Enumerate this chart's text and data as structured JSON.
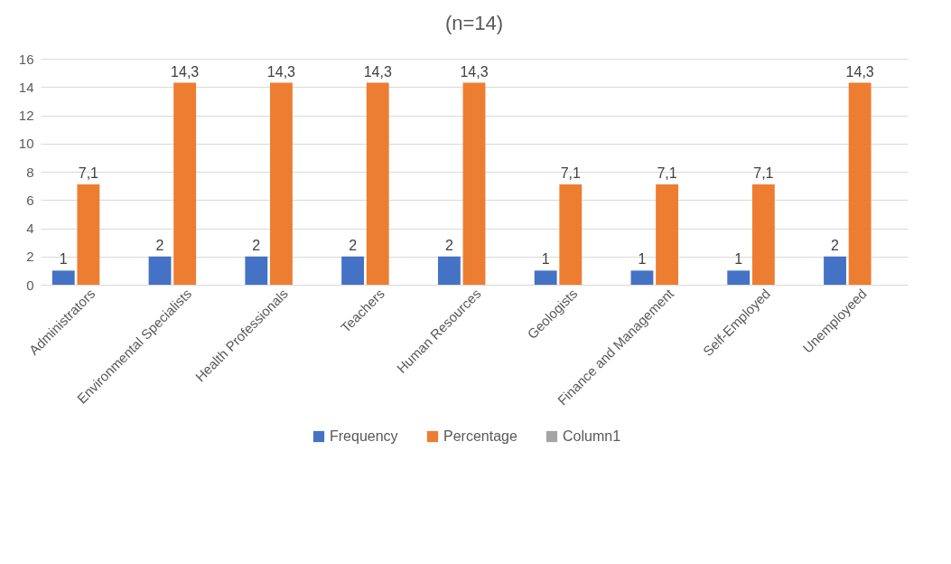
{
  "chart_data": {
    "type": "bar",
    "title": "(n=14)",
    "categories": [
      "Administrators",
      "Environmental Specialists",
      "Health Professionals",
      "Teachers",
      "Human Resources",
      "Geologists",
      "Finance and Management",
      "Self-Employed",
      "Unemployeed"
    ],
    "series": [
      {
        "name": "Frequency",
        "color": "#4472c4",
        "values": [
          1,
          2,
          2,
          2,
          2,
          1,
          1,
          1,
          2
        ],
        "value_labels": [
          "1",
          "2",
          "2",
          "2",
          "2",
          "1",
          "1",
          "1",
          "2"
        ]
      },
      {
        "name": "Percentage",
        "color": "#ed7d31",
        "values": [
          7.1,
          14.3,
          14.3,
          14.3,
          14.3,
          7.1,
          7.1,
          7.1,
          14.3
        ],
        "value_labels": [
          "7,1",
          "14,3",
          "14,3",
          "14,3",
          "14,3",
          "7,1",
          "7,1",
          "7,1",
          "14,3"
        ]
      },
      {
        "name": "Column1",
        "color": "#a5a5a5",
        "values": [
          null,
          null,
          null,
          null,
          null,
          null,
          null,
          null,
          null
        ]
      }
    ],
    "ylim": [
      0,
      16
    ],
    "yticks": [
      0,
      2,
      4,
      6,
      8,
      10,
      12,
      14,
      16
    ],
    "grid": "y",
    "legend": "bottom"
  }
}
